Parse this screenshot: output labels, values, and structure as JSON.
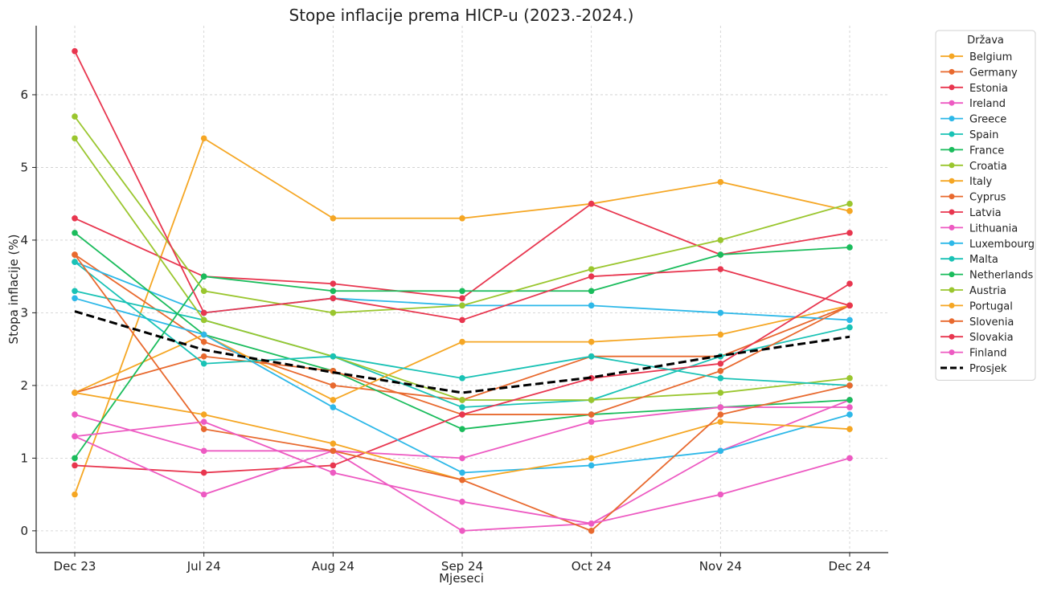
{
  "chart_data": {
    "type": "line",
    "title": "Stope inflacije prema HICP-u (2023.-2024.)",
    "xlabel": "Mjeseci",
    "ylabel": "Stopa inflacije (%)",
    "categories": [
      "Dec 23",
      "Jul 24",
      "Aug 24",
      "Sep 24",
      "Oct 24",
      "Nov 24",
      "Dec 24"
    ],
    "ylim": [
      -0.3,
      6.95
    ],
    "yticks": [
      0,
      1,
      2,
      3,
      4,
      5,
      6
    ],
    "grid": true,
    "legend_title": "Država",
    "legend_position": "outside-right",
    "series": [
      {
        "name": "Belgium",
        "color": "#f5a623",
        "values": [
          0.5,
          5.4,
          4.3,
          4.3,
          4.5,
          4.8,
          4.4
        ]
      },
      {
        "name": "Germany",
        "color": "#e8692e",
        "values": [
          3.8,
          2.6,
          2.0,
          1.8,
          2.4,
          2.4,
          3.1
        ]
      },
      {
        "name": "Estonia",
        "color": "#e8364f",
        "values": [
          4.3,
          3.5,
          3.4,
          3.2,
          4.5,
          3.8,
          4.1
        ]
      },
      {
        "name": "Ireland",
        "color": "#ed5ac2",
        "values": [
          1.6,
          1.1,
          1.1,
          0.0,
          0.1,
          1.1,
          1.8
        ]
      },
      {
        "name": "Greece",
        "color": "#2db8e8",
        "values": [
          3.7,
          3.0,
          3.2,
          3.1,
          3.1,
          3.0,
          2.9
        ]
      },
      {
        "name": "Spain",
        "color": "#19c2b5",
        "values": [
          3.3,
          2.9,
          2.4,
          1.7,
          1.8,
          2.4,
          2.8
        ]
      },
      {
        "name": "France",
        "color": "#1abc5c",
        "values": [
          4.1,
          2.7,
          2.2,
          1.4,
          1.6,
          1.7,
          1.8
        ]
      },
      {
        "name": "Croatia",
        "color": "#9ac62e",
        "values": [
          5.4,
          2.9,
          2.4,
          1.8,
          1.8,
          1.9,
          2.1
        ]
      },
      {
        "name": "Italy",
        "color": "#f5a623",
        "values": [
          1.9,
          2.7,
          1.8,
          2.6,
          2.6,
          2.7,
          3.1
        ]
      },
      {
        "name": "Cyprus",
        "color": "#e8692e",
        "values": [
          1.9,
          2.4,
          2.2,
          1.6,
          1.6,
          2.2,
          3.1
        ]
      },
      {
        "name": "Latvia",
        "color": "#e8364f",
        "values": [
          0.9,
          0.8,
          0.9,
          1.6,
          2.1,
          2.3,
          3.4
        ]
      },
      {
        "name": "Lithuania",
        "color": "#ed5ac2",
        "values": [
          1.3,
          0.5,
          1.1,
          1.0,
          1.5,
          1.7,
          1.7
        ]
      },
      {
        "name": "Luxembourg",
        "color": "#2db8e8",
        "values": [
          3.2,
          2.7,
          1.7,
          0.8,
          0.9,
          1.1,
          1.6
        ]
      },
      {
        "name": "Malta",
        "color": "#19c2b5",
        "values": [
          3.7,
          2.3,
          2.4,
          2.1,
          2.4,
          2.1,
          2.0
        ]
      },
      {
        "name": "Netherlands",
        "color": "#1abc5c",
        "values": [
          1.0,
          3.5,
          3.3,
          3.3,
          3.3,
          3.8,
          3.9
        ]
      },
      {
        "name": "Austria",
        "color": "#9ac62e",
        "values": [
          5.7,
          3.3,
          3.0,
          3.1,
          3.6,
          4.0,
          4.5
        ]
      },
      {
        "name": "Portugal",
        "color": "#f5a623",
        "values": [
          1.9,
          1.6,
          1.2,
          0.7,
          1.0,
          1.5,
          1.4
        ]
      },
      {
        "name": "Slovenia",
        "color": "#e8692e",
        "values": [
          3.8,
          1.4,
          1.1,
          0.7,
          0.0,
          1.6,
          2.0
        ]
      },
      {
        "name": "Slovakia",
        "color": "#e8364f",
        "values": [
          6.6,
          3.0,
          3.2,
          2.9,
          3.5,
          3.6,
          3.1
        ]
      },
      {
        "name": "Finland",
        "color": "#ed5ac2",
        "values": [
          1.3,
          1.5,
          0.8,
          0.4,
          0.1,
          0.5,
          1.0
        ]
      }
    ],
    "average": {
      "name": "Prosjek",
      "color": "#000000",
      "values": [
        3.02,
        2.49,
        2.18,
        1.9,
        2.11,
        2.41,
        2.67
      ]
    }
  }
}
